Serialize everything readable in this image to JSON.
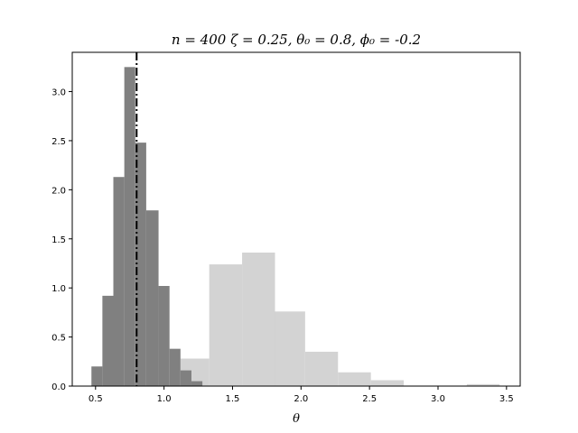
{
  "chart_data": {
    "type": "bar",
    "title": "n = 400 ζ = 0.25,  θ₀ = 0.8, ϕ₀ = -0.2",
    "xlabel": "θ",
    "ylabel": "",
    "xlim": [
      0.33,
      3.6
    ],
    "ylim": [
      0,
      3.4
    ],
    "grid": false,
    "x_ticks": [
      0.5,
      1.0,
      1.5,
      2.0,
      2.5,
      3.0,
      3.5
    ],
    "x_tick_labels": [
      "0.5",
      "1.0",
      "1.5",
      "2.0",
      "2.5",
      "3.0",
      "3.5"
    ],
    "y_ticks": [
      0.0,
      0.5,
      1.0,
      1.5,
      2.0,
      2.5,
      3.0
    ],
    "y_tick_labels": [
      "0.0",
      "0.5",
      "1.0",
      "1.5",
      "2.0",
      "2.5",
      "3.0"
    ],
    "reference_line": {
      "x": 0.8,
      "style": "dash-dot",
      "color": "#000000"
    },
    "series": [
      {
        "color": "#d3d3d3",
        "bins": [
          {
            "x0": 1.12,
            "x1": 1.33,
            "value": 0.28
          },
          {
            "x0": 1.33,
            "x1": 1.57,
            "value": 1.24
          },
          {
            "x0": 1.57,
            "x1": 1.81,
            "value": 1.36
          },
          {
            "x0": 1.81,
            "x1": 2.03,
            "value": 0.76
          },
          {
            "x0": 2.03,
            "x1": 2.27,
            "value": 0.35
          },
          {
            "x0": 2.27,
            "x1": 2.51,
            "value": 0.14
          },
          {
            "x0": 2.51,
            "x1": 2.75,
            "value": 0.06
          },
          {
            "x0": 2.75,
            "x1": 2.99,
            "value": 0.005
          },
          {
            "x0": 2.99,
            "x1": 3.21,
            "value": 0.005
          },
          {
            "x0": 3.21,
            "x1": 3.45,
            "value": 0.02
          }
        ]
      },
      {
        "color": "#808080",
        "bins": [
          {
            "x0": 0.47,
            "x1": 0.55,
            "value": 0.2
          },
          {
            "x0": 0.55,
            "x1": 0.63,
            "value": 0.92
          },
          {
            "x0": 0.63,
            "x1": 0.71,
            "value": 2.13
          },
          {
            "x0": 0.71,
            "x1": 0.79,
            "value": 3.25
          },
          {
            "x0": 0.79,
            "x1": 0.87,
            "value": 2.48
          },
          {
            "x0": 0.87,
            "x1": 0.96,
            "value": 1.79
          },
          {
            "x0": 0.96,
            "x1": 1.04,
            "value": 1.02
          },
          {
            "x0": 1.04,
            "x1": 1.12,
            "value": 0.38
          },
          {
            "x0": 1.12,
            "x1": 1.2,
            "value": 0.16
          },
          {
            "x0": 1.2,
            "x1": 1.28,
            "value": 0.05
          }
        ]
      }
    ]
  }
}
